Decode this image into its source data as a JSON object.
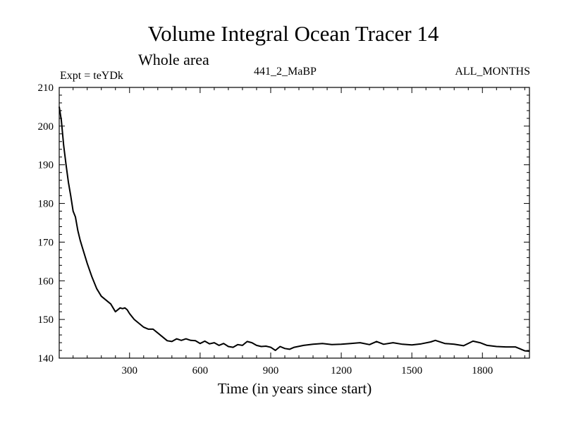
{
  "chart_data": {
    "type": "line",
    "title": "Volume Integral Ocean Tracer 14",
    "subtitle": "Whole area",
    "experiment_label": "Expt = teYDk",
    "run_label": "441_2_MaBP",
    "months_label": "ALL_MONTHS",
    "xlabel": "Time (in years since start)",
    "ylabel": "",
    "xlim": [
      1,
      2000
    ],
    "ylim": [
      140,
      210
    ],
    "x_ticks": [
      300,
      600,
      900,
      1200,
      1500,
      1800
    ],
    "y_ticks": [
      140,
      150,
      160,
      170,
      180,
      190,
      200,
      210
    ],
    "series": [
      {
        "name": "Volume Integral Ocean Tracer 14",
        "x": [
          1,
          10,
          20,
          30,
          40,
          50,
          60,
          70,
          80,
          90,
          100,
          120,
          140,
          160,
          180,
          200,
          220,
          240,
          260,
          270,
          280,
          290,
          300,
          320,
          340,
          360,
          380,
          400,
          420,
          440,
          460,
          480,
          500,
          520,
          540,
          560,
          580,
          600,
          620,
          640,
          660,
          680,
          700,
          720,
          740,
          760,
          780,
          800,
          820,
          840,
          860,
          880,
          900,
          920,
          940,
          960,
          980,
          1000,
          1040,
          1080,
          1120,
          1160,
          1200,
          1240,
          1280,
          1320,
          1350,
          1380,
          1420,
          1460,
          1500,
          1540,
          1580,
          1600,
          1640,
          1680,
          1720,
          1760,
          1790,
          1820,
          1860,
          1900,
          1940,
          1960,
          1980,
          2000
        ],
        "values": [
          205.0,
          201.5,
          195.0,
          190.0,
          185.5,
          182.0,
          178.0,
          176.5,
          173.0,
          170.5,
          168.5,
          164.5,
          161.0,
          158.0,
          156.0,
          155.0,
          154.0,
          152.0,
          153.0,
          152.8,
          153.0,
          152.5,
          151.5,
          150.0,
          149.0,
          148.0,
          147.5,
          147.5,
          146.5,
          145.5,
          144.5,
          144.3,
          145.0,
          144.6,
          145.0,
          144.6,
          144.5,
          143.8,
          144.4,
          143.7,
          144.0,
          143.3,
          143.8,
          143.0,
          142.8,
          143.5,
          143.3,
          144.3,
          144.0,
          143.3,
          143.0,
          143.1,
          142.8,
          142.0,
          143.0,
          142.5,
          142.3,
          142.8,
          143.3,
          143.6,
          143.8,
          143.5,
          143.6,
          143.8,
          144.0,
          143.5,
          144.3,
          143.6,
          144.0,
          143.6,
          143.4,
          143.7,
          144.2,
          144.6,
          143.8,
          143.6,
          143.2,
          144.4,
          144.0,
          143.3,
          143.0,
          142.9,
          142.9,
          142.4,
          141.9,
          141.8
        ]
      }
    ]
  }
}
